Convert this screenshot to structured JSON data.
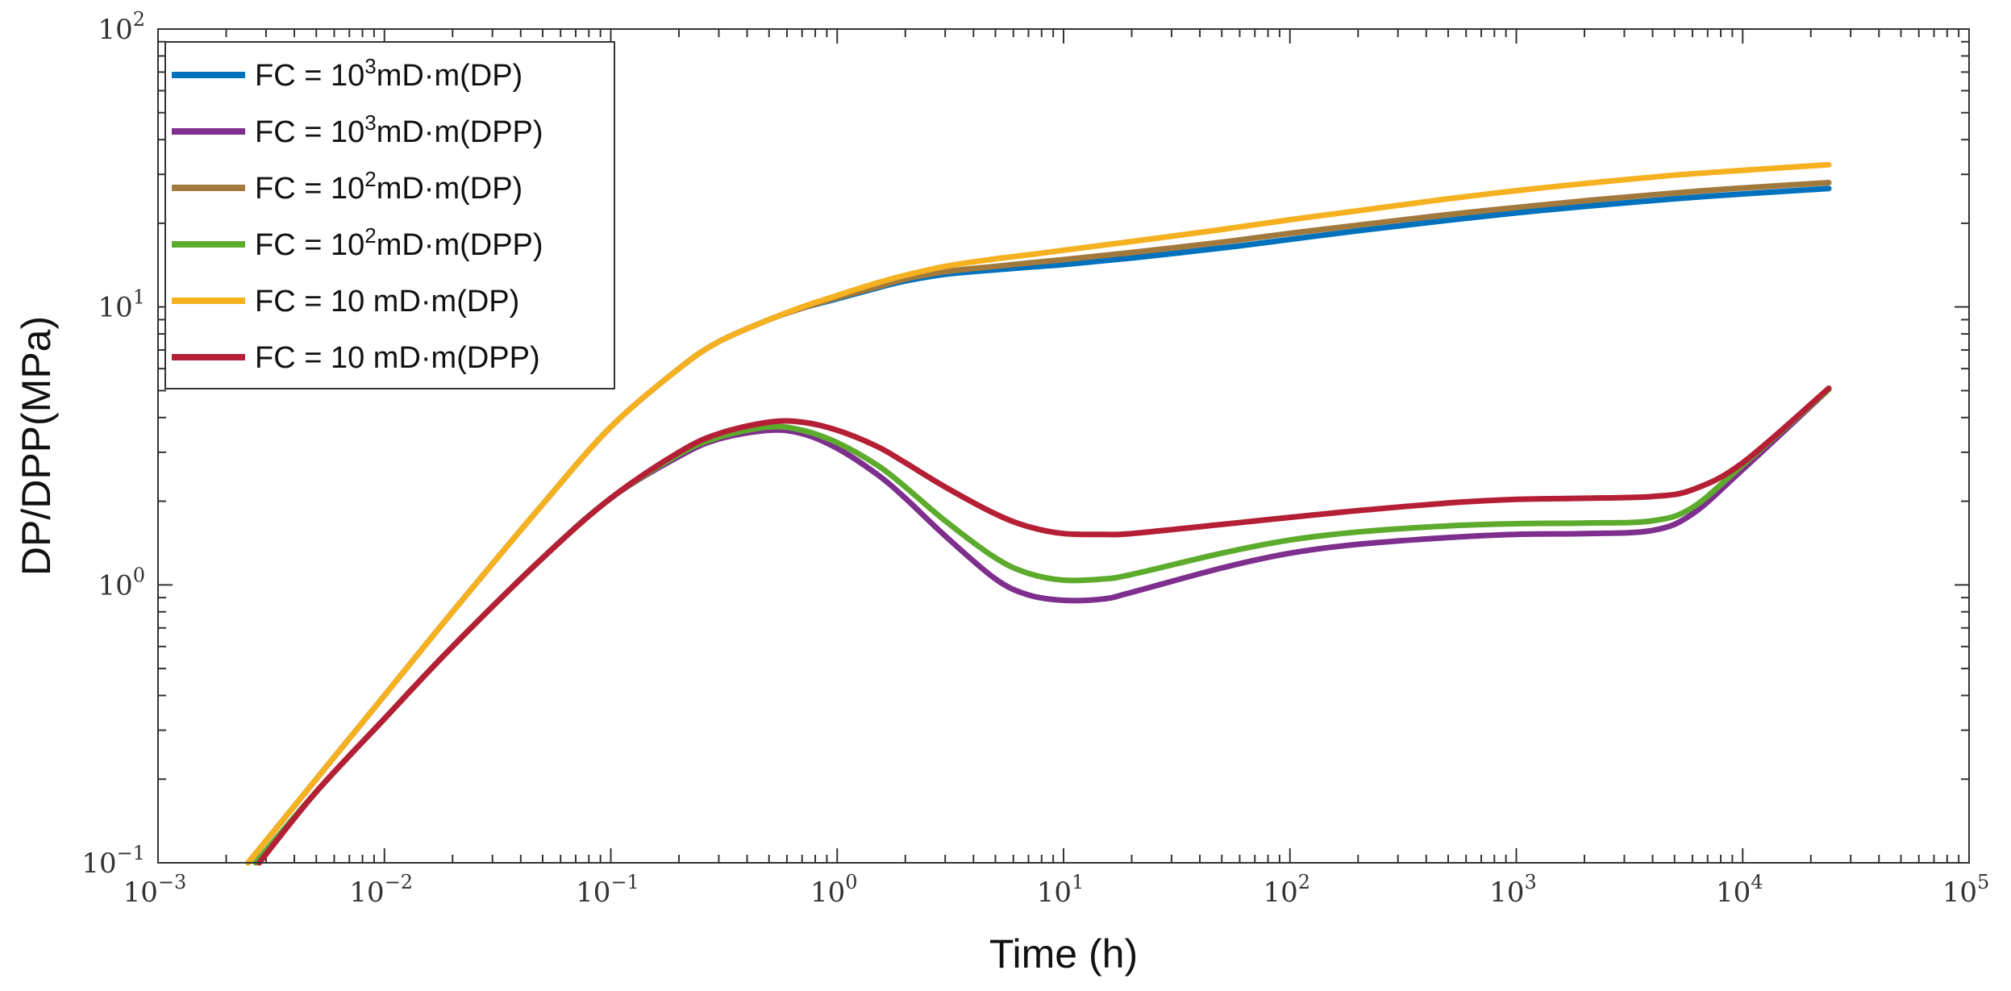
{
  "chart_data": {
    "type": "line",
    "xlabel": "Time (h)",
    "ylabel": "DP/DPP(MPa)",
    "xscale": "log",
    "yscale": "log",
    "xlim": [
      0.001,
      100000
    ],
    "ylim": [
      0.1,
      100
    ],
    "x_ticks": [
      {
        "base": "10",
        "exp": "−3"
      },
      {
        "base": "10",
        "exp": "−2"
      },
      {
        "base": "10",
        "exp": "−1"
      },
      {
        "base": "10",
        "exp": "0"
      },
      {
        "base": "10",
        "exp": "1"
      },
      {
        "base": "10",
        "exp": "2"
      },
      {
        "base": "10",
        "exp": "3"
      },
      {
        "base": "10",
        "exp": "4"
      },
      {
        "base": "10",
        "exp": "5"
      }
    ],
    "y_ticks": [
      {
        "base": "10",
        "exp": "−1"
      },
      {
        "base": "10",
        "exp": "0"
      },
      {
        "base": "10",
        "exp": "1"
      },
      {
        "base": "10",
        "exp": "2"
      }
    ],
    "grid": false,
    "legend_position": "top-left",
    "series": [
      {
        "name": "FC = 10^3mD·m(DP)",
        "legend": {
          "pre": "FC = 10",
          "sup": "3",
          "post": "mD·m(DP)"
        },
        "color": "#0072BD",
        "x": [
          0.0025,
          0.005,
          0.01,
          0.02,
          0.05,
          0.1,
          0.2,
          0.3,
          0.5,
          0.7,
          1,
          1.5,
          2,
          3,
          5,
          7,
          10,
          20,
          50,
          100,
          200,
          500,
          1000,
          2000,
          5000,
          10000,
          24000
        ],
        "y": [
          0.1,
          0.2,
          0.4,
          0.8,
          1.95,
          3.7,
          6.0,
          7.5,
          9.0,
          9.9,
          10.7,
          11.7,
          12.4,
          13.1,
          13.6,
          13.9,
          14.2,
          15.0,
          16.3,
          17.5,
          18.8,
          20.5,
          21.8,
          23.0,
          24.5,
          25.5,
          26.7
        ]
      },
      {
        "name": "FC = 10^3mD·m(DPP)",
        "legend": {
          "pre": "FC = 10",
          "sup": "3",
          "post": "mD·m(DPP)"
        },
        "color": "#7E2F8E",
        "x": [
          0.0027,
          0.005,
          0.01,
          0.02,
          0.05,
          0.1,
          0.2,
          0.3,
          0.5,
          0.7,
          1,
          1.5,
          2,
          3,
          5,
          7,
          10,
          15,
          20,
          50,
          100,
          200,
          500,
          1000,
          2000,
          4000,
          6000,
          10000,
          24000
        ],
        "y": [
          0.1,
          0.18,
          0.33,
          0.6,
          1.25,
          2.05,
          2.9,
          3.35,
          3.6,
          3.5,
          3.1,
          2.5,
          2.05,
          1.5,
          1.05,
          0.92,
          0.88,
          0.89,
          0.94,
          1.15,
          1.3,
          1.4,
          1.48,
          1.52,
          1.53,
          1.57,
          1.8,
          2.6,
          5.05
        ]
      },
      {
        "name": "FC = 10^2mD·m(DP)",
        "legend": {
          "pre": "FC = 10",
          "sup": "2",
          "post": "mD·m(DP)"
        },
        "color": "#A2793D",
        "x": [
          0.0025,
          0.005,
          0.01,
          0.02,
          0.05,
          0.1,
          0.2,
          0.3,
          0.5,
          0.7,
          1,
          1.5,
          2,
          3,
          5,
          7,
          10,
          20,
          50,
          100,
          200,
          500,
          1000,
          2000,
          5000,
          10000,
          24000
        ],
        "y": [
          0.1,
          0.2,
          0.4,
          0.8,
          1.95,
          3.7,
          6.0,
          7.5,
          9.0,
          9.9,
          10.8,
          11.8,
          12.6,
          13.4,
          14.0,
          14.4,
          14.8,
          15.7,
          17.1,
          18.4,
          19.7,
          21.5,
          22.8,
          24.1,
          25.7,
          26.8,
          28.0
        ]
      },
      {
        "name": "FC = 10^2mD·m(DPP)",
        "legend": {
          "pre": "FC = 10",
          "sup": "2",
          "post": "mD·m(DPP)"
        },
        "color": "#5DAB2D",
        "x": [
          0.0027,
          0.005,
          0.01,
          0.02,
          0.05,
          0.1,
          0.2,
          0.3,
          0.5,
          0.7,
          1,
          1.5,
          2,
          3,
          5,
          7,
          10,
          15,
          20,
          50,
          100,
          200,
          500,
          1000,
          2000,
          4000,
          6000,
          10000,
          24000
        ],
        "y": [
          0.1,
          0.18,
          0.33,
          0.6,
          1.25,
          2.05,
          2.95,
          3.4,
          3.7,
          3.6,
          3.25,
          2.7,
          2.25,
          1.7,
          1.25,
          1.1,
          1.04,
          1.05,
          1.09,
          1.3,
          1.45,
          1.55,
          1.63,
          1.66,
          1.67,
          1.7,
          1.9,
          2.7,
          5.05
        ]
      },
      {
        "name": "FC = 10 mD·m(DP)",
        "legend": {
          "pre": "FC = 10 mD·m(DP)",
          "sup": "",
          "post": ""
        },
        "color": "#F5B120",
        "x": [
          0.0025,
          0.005,
          0.01,
          0.02,
          0.05,
          0.1,
          0.2,
          0.3,
          0.5,
          0.7,
          1,
          1.5,
          2,
          3,
          5,
          7,
          10,
          20,
          50,
          100,
          200,
          500,
          1000,
          2000,
          5000,
          10000,
          24000
        ],
        "y": [
          0.1,
          0.2,
          0.4,
          0.8,
          1.95,
          3.7,
          6.0,
          7.5,
          9.0,
          10.0,
          11.0,
          12.2,
          13.0,
          14.0,
          14.9,
          15.4,
          16.0,
          17.2,
          19.0,
          20.6,
          22.2,
          24.5,
          26.2,
          27.8,
          29.8,
          31.0,
          32.5
        ]
      },
      {
        "name": "FC = 10 mD·m(DPP)",
        "legend": {
          "pre": "FC = 10 mD·m(DPP)",
          "sup": "",
          "post": ""
        },
        "color": "#B51F35",
        "x": [
          0.0028,
          0.005,
          0.01,
          0.02,
          0.05,
          0.1,
          0.2,
          0.3,
          0.5,
          0.7,
          1,
          1.5,
          2,
          3,
          5,
          7,
          10,
          15,
          20,
          50,
          100,
          200,
          500,
          1000,
          2000,
          4000,
          6000,
          10000,
          24000
        ],
        "y": [
          0.1,
          0.18,
          0.33,
          0.6,
          1.25,
          2.05,
          3.0,
          3.5,
          3.85,
          3.85,
          3.6,
          3.15,
          2.75,
          2.25,
          1.8,
          1.62,
          1.53,
          1.52,
          1.53,
          1.65,
          1.75,
          1.85,
          1.97,
          2.03,
          2.05,
          2.08,
          2.2,
          2.75,
          5.1
        ]
      }
    ]
  }
}
